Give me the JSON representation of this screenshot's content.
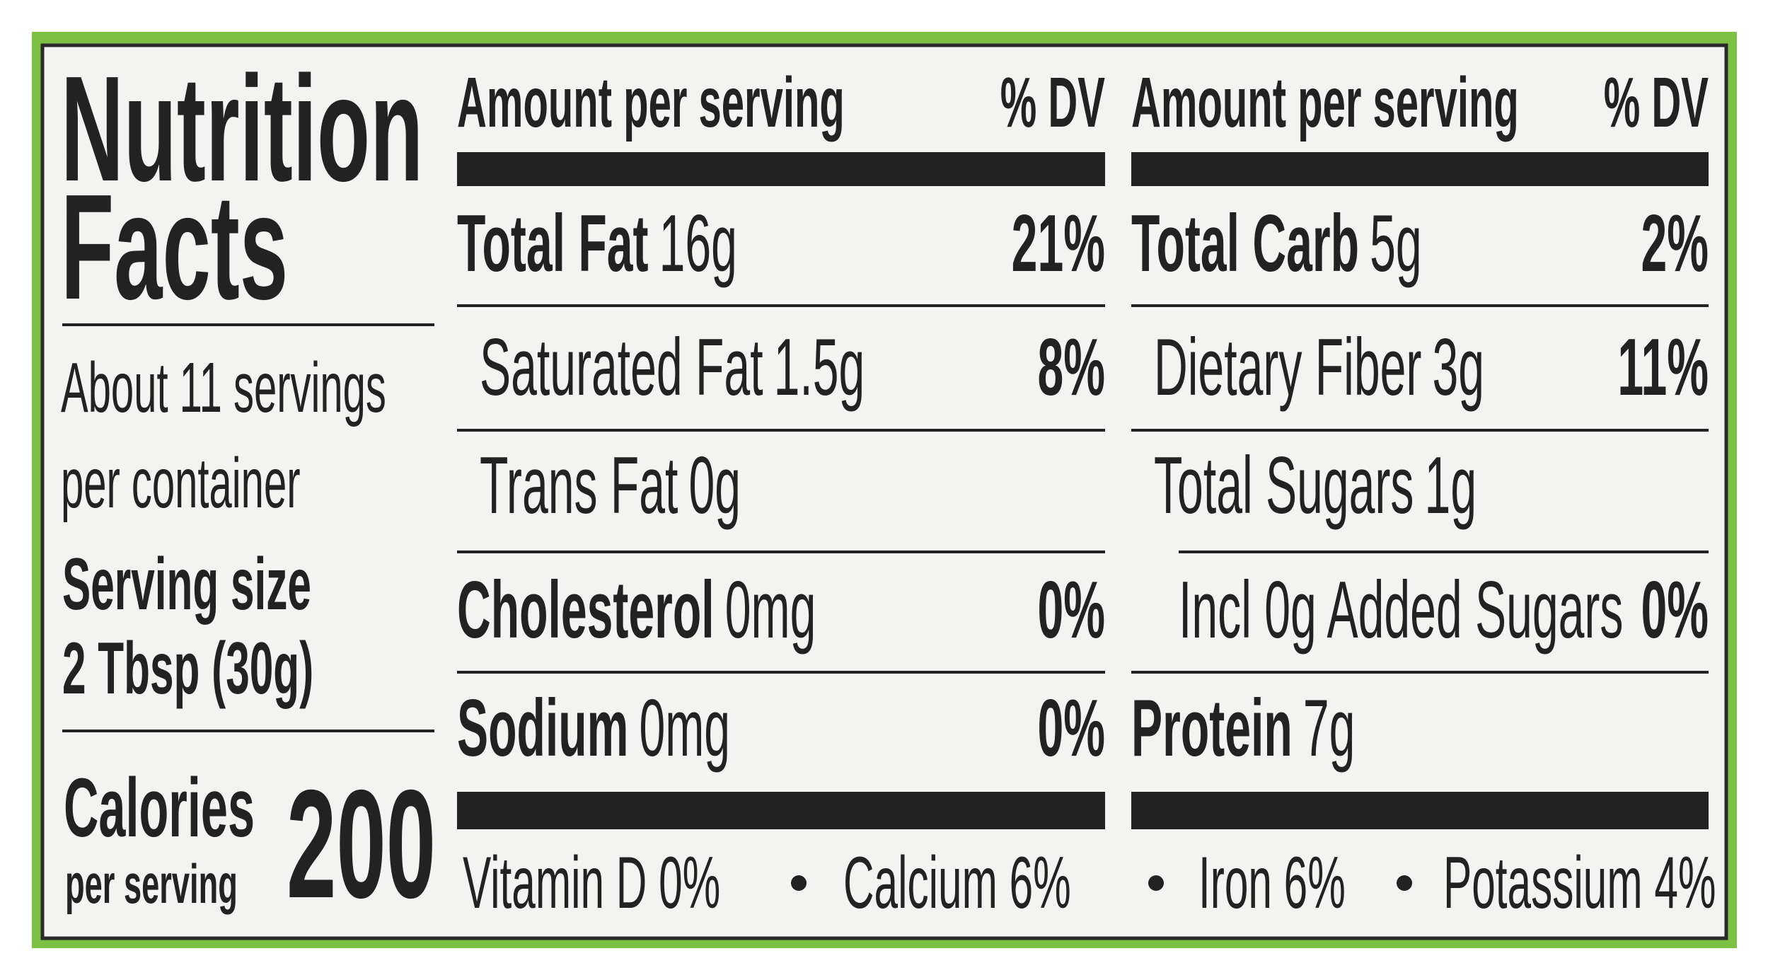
{
  "label": {
    "title_lines": [
      "Nutrition",
      "Facts"
    ],
    "servings_lines": [
      "About 11 servings",
      "per container"
    ],
    "serving_size_label": "Serving size",
    "serving_size": "2 Tbsp (30g)",
    "calories_label": "Calories",
    "calories_sublabel": "per serving",
    "calories": 200,
    "columns": [
      {
        "amount_header": "Amount per serving",
        "dv_header": "% DV",
        "rows": [
          {
            "name": "Total Fat",
            "amount": "16g",
            "dv": "21%",
            "bold": true,
            "indent": 0
          },
          {
            "name": "Saturated Fat",
            "amount": "1.5g",
            "dv": "8%",
            "bold": false,
            "indent": 1
          },
          {
            "name": "Trans Fat",
            "amount": "0g",
            "bold": false,
            "indent": 1
          },
          {
            "name": "Cholesterol",
            "amount": "0mg",
            "dv": "0%",
            "bold": true,
            "indent": 0
          },
          {
            "name": "Sodium",
            "amount": "0mg",
            "dv": "0%",
            "bold": true,
            "indent": 0
          }
        ]
      },
      {
        "amount_header": "Amount per serving",
        "dv_header": "% DV",
        "rows": [
          {
            "name": "Total Carb",
            "amount": "5g",
            "dv": "2%",
            "bold": true,
            "indent": 0
          },
          {
            "name": "Dietary Fiber",
            "amount": "3g",
            "dv": "11%",
            "bold": false,
            "indent": 1
          },
          {
            "name": "Total Sugars",
            "amount": "1g",
            "bold": false,
            "indent": 1
          },
          {
            "name": "Incl 0g Added Sugars",
            "dv": "0%",
            "bold": false,
            "indent": 2
          },
          {
            "name": "Protein",
            "amount": "7g",
            "bold": true,
            "indent": 0
          }
        ]
      }
    ],
    "footer": [
      "Vitamin D 0%",
      "Calcium 6%",
      "Iron 6%",
      "Potassium 4%"
    ]
  }
}
